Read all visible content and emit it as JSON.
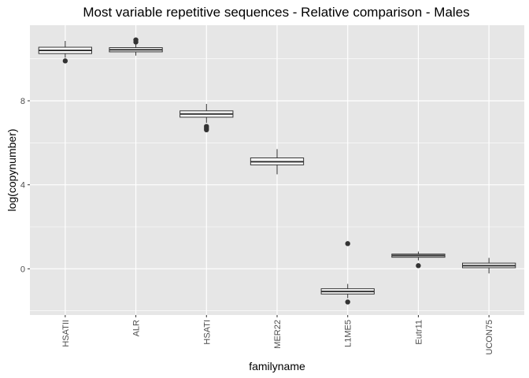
{
  "chart_data": {
    "type": "boxplot",
    "title": "Most variable repetitive sequences - Relative comparison - Males",
    "xlabel": "familyname",
    "ylabel": "log(copynumber)",
    "ylim": [
      -2.2,
      11.6
    ],
    "yticks": [
      0,
      4,
      8
    ],
    "grid": true,
    "background": "#e6e6e6",
    "grid_color": "#ffffff",
    "box_fill": "#ffffff",
    "box_stroke": "#333333",
    "categories": [
      "HSATII",
      "ALR",
      "HSATI",
      "MER22",
      "L1ME5",
      "Eutr11",
      "UCON75"
    ],
    "boxes": [
      {
        "name": "HSATII",
        "whisker_low": 10.05,
        "q1": 10.25,
        "median": 10.4,
        "q3": 10.55,
        "whisker_high": 10.85,
        "outliers": [
          9.9
        ]
      },
      {
        "name": "ALR",
        "whisker_low": 10.15,
        "q1": 10.33,
        "median": 10.43,
        "q3": 10.53,
        "whisker_high": 10.72,
        "outliers": [
          10.8,
          10.9
        ]
      },
      {
        "name": "HSATI",
        "whisker_low": 6.95,
        "q1": 7.22,
        "median": 7.37,
        "q3": 7.52,
        "whisker_high": 7.85,
        "outliers": [
          6.62,
          6.7,
          6.78
        ]
      },
      {
        "name": "MER22",
        "whisker_low": 4.5,
        "q1": 4.95,
        "median": 5.1,
        "q3": 5.28,
        "whisker_high": 5.7,
        "outliers": []
      },
      {
        "name": "L1ME5",
        "whisker_low": -1.4,
        "q1": -1.2,
        "median": -1.08,
        "q3": -0.95,
        "whisker_high": -0.72,
        "outliers": [
          1.2,
          -1.58
        ]
      },
      {
        "name": "Eutr11",
        "whisker_low": 0.4,
        "q1": 0.55,
        "median": 0.63,
        "q3": 0.7,
        "whisker_high": 0.82,
        "outliers": [
          0.15
        ]
      },
      {
        "name": "UCON75",
        "whisker_low": -0.22,
        "q1": 0.05,
        "median": 0.15,
        "q3": 0.27,
        "whisker_high": 0.52,
        "outliers": []
      }
    ]
  }
}
